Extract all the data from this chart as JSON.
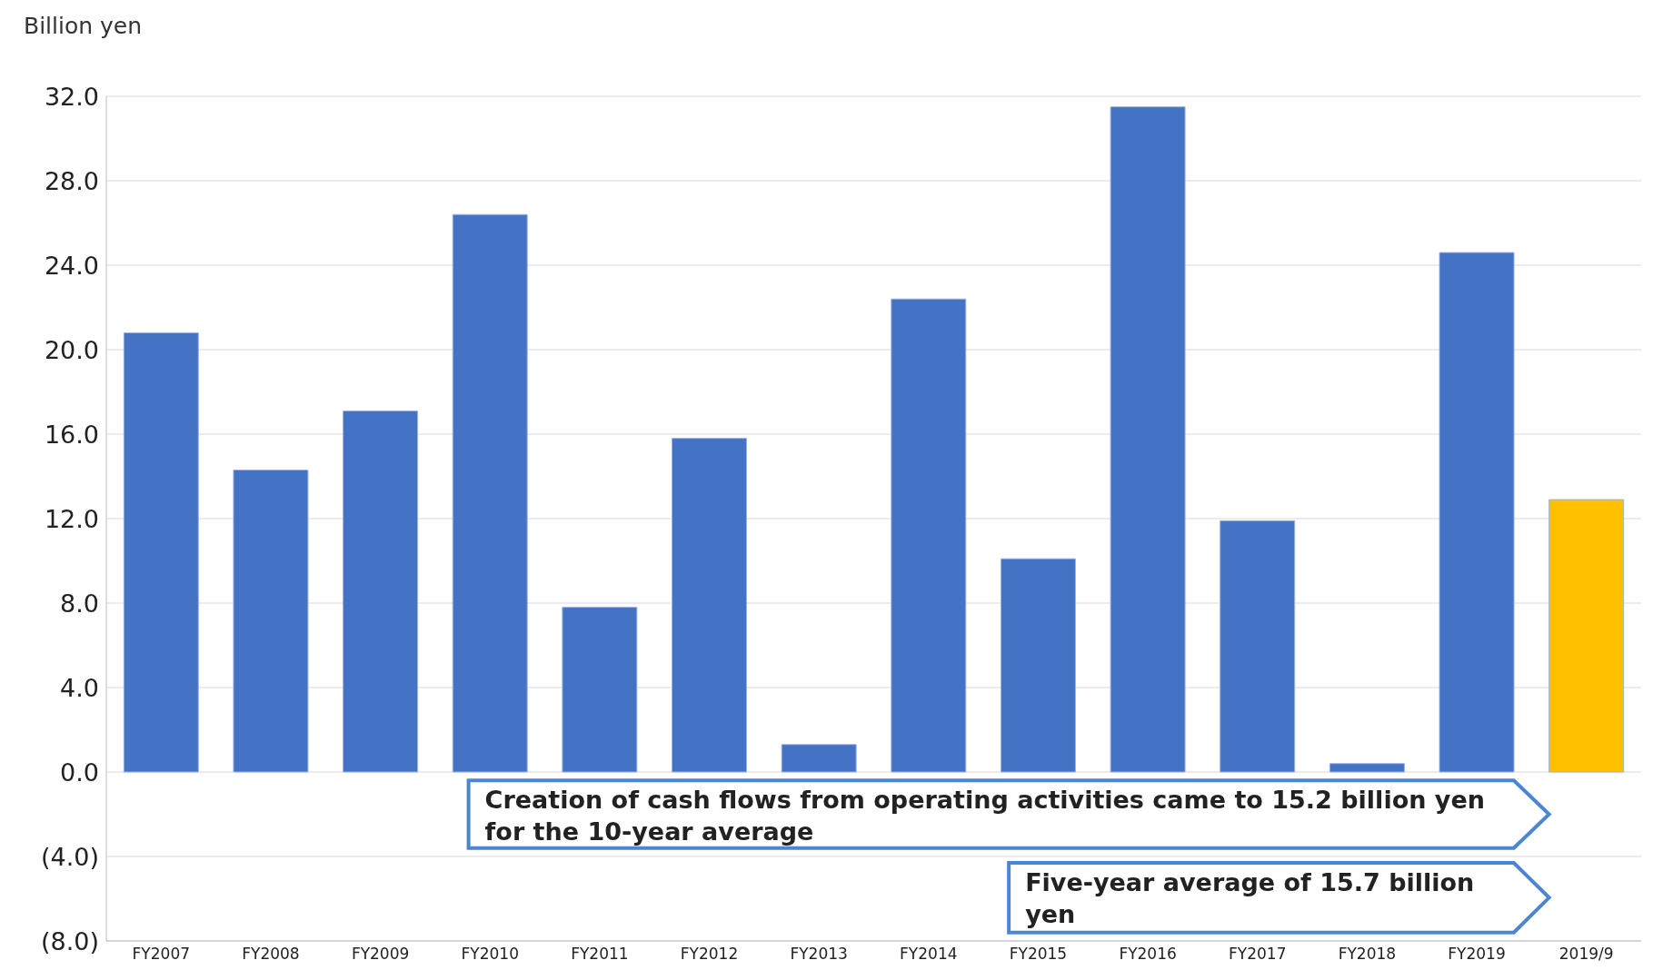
{
  "chart_data": {
    "type": "bar",
    "ylabel": "Billion yen",
    "categories": [
      "FY2007",
      "FY2008",
      "FY2009",
      "FY2010",
      "FY2011",
      "FY2012",
      "FY2013",
      "FY2014",
      "FY2015",
      "FY2016",
      "FY2017",
      "FY2018",
      "FY2019",
      "2019/9"
    ],
    "values": [
      20.8,
      14.3,
      17.1,
      26.4,
      7.8,
      15.8,
      1.3,
      22.4,
      10.1,
      31.5,
      11.9,
      0.4,
      24.6,
      12.9
    ],
    "colors": [
      "#4472c4",
      "#4472c4",
      "#4472c4",
      "#4472c4",
      "#4472c4",
      "#4472c4",
      "#4472c4",
      "#4472c4",
      "#4472c4",
      "#4472c4",
      "#4472c4",
      "#4472c4",
      "#4472c4",
      "#ffc000"
    ],
    "ylim": [
      -8,
      32
    ],
    "yticks": [
      {
        "value": -8,
        "label": "(8.0)"
      },
      {
        "value": -4,
        "label": "(4.0)"
      },
      {
        "value": 0,
        "label": "0.0"
      },
      {
        "value": 4,
        "label": "4.0"
      },
      {
        "value": 8,
        "label": "8.0"
      },
      {
        "value": 12,
        "label": "12.0"
      },
      {
        "value": 16,
        "label": "16.0"
      },
      {
        "value": 20,
        "label": "20.0"
      },
      {
        "value": 24,
        "label": "24.0"
      },
      {
        "value": 28,
        "label": "28.0"
      },
      {
        "value": 32,
        "label": "32.0"
      }
    ],
    "grid": "y",
    "annotations": [
      "Creation of cash flows from operating activities came to 15.2 billion yen for the 10-year average",
      "Five-year average of 15.7 billion yen"
    ]
  }
}
